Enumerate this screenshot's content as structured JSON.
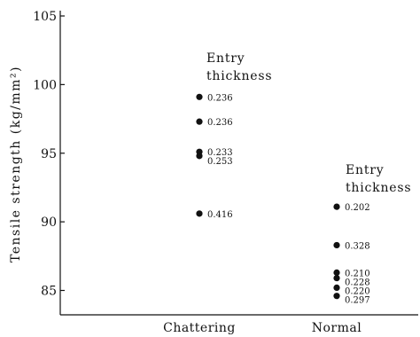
{
  "chart_data": {
    "type": "scatter",
    "ylabel": "Tensile strength (kg/mm²)",
    "ylim": [
      83,
      105
    ],
    "yticks": [
      85,
      90,
      95,
      100,
      105
    ],
    "categories": [
      "Chattering",
      "Normal"
    ],
    "series": [
      {
        "category": "Chattering",
        "points": [
          {
            "y": 99.1,
            "label": "0.236"
          },
          {
            "y": 97.3,
            "label": "0.236"
          },
          {
            "y": 95.1,
            "label": "0.233"
          },
          {
            "y": 94.8,
            "label": "0.253"
          },
          {
            "y": 90.6,
            "label": "0.416"
          }
        ]
      },
      {
        "category": "Normal",
        "points": [
          {
            "y": 91.1,
            "label": "0.202"
          },
          {
            "y": 88.3,
            "label": "0.328"
          },
          {
            "y": 86.3,
            "label": "0.210"
          },
          {
            "y": 85.9,
            "label": "0.228"
          },
          {
            "y": 85.2,
            "label": "0.220"
          },
          {
            "y": 84.6,
            "label": "0.297"
          }
        ]
      }
    ],
    "annotations": [
      {
        "category": "Chattering",
        "lines": [
          "Entry",
          "thickness"
        ]
      },
      {
        "category": "Normal",
        "lines": [
          "Entry",
          "thickness"
        ]
      }
    ],
    "grid": false,
    "legend": "none"
  }
}
